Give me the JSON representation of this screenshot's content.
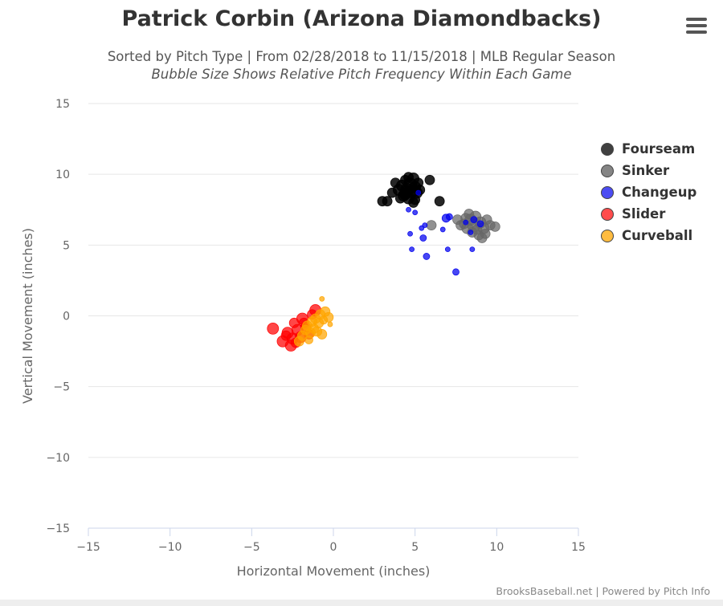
{
  "header": {
    "title": "Patrick Corbin (Arizona Diamondbacks)",
    "subtitle": "Sorted by Pitch Type | From 02/28/2018 to 11/15/2018 | MLB Regular Season",
    "subtitle_italic": "Bubble Size Shows Relative Pitch Frequency Within Each Game"
  },
  "menu": {
    "icon": "hamburger-menu-icon"
  },
  "credits": "BrooksBaseball.net | Powered by Pitch Info",
  "chart_data": {
    "type": "scatter",
    "title": "Patrick Corbin (Arizona Diamondbacks)",
    "xlabel": "Horizontal Movement (inches)",
    "ylabel": "Vertical Movement (inches)",
    "xlim": [
      -15,
      15
    ],
    "ylim": [
      -15,
      15
    ],
    "xticks": [
      -15,
      -10,
      -5,
      0,
      5,
      10,
      15
    ],
    "yticks": [
      -15,
      -10,
      -5,
      0,
      5,
      10,
      15
    ],
    "xtick_labels": [
      "−15",
      "−10",
      "−5",
      "0",
      "5",
      "10",
      "15"
    ],
    "ytick_labels": [
      "−15",
      "−10",
      "−5",
      "0",
      "5",
      "10",
      "15"
    ],
    "grid": "horizontal",
    "legend_position": "right",
    "series": [
      {
        "name": "Fourseam",
        "color": "#000000",
        "points": [
          {
            "x": 3.0,
            "y": 8.1,
            "s": 6
          },
          {
            "x": 3.3,
            "y": 8.1,
            "s": 6
          },
          {
            "x": 3.6,
            "y": 8.7,
            "s": 6
          },
          {
            "x": 3.8,
            "y": 9.4,
            "s": 6
          },
          {
            "x": 4.0,
            "y": 8.9,
            "s": 7
          },
          {
            "x": 4.2,
            "y": 9.2,
            "s": 7
          },
          {
            "x": 4.3,
            "y": 8.5,
            "s": 7
          },
          {
            "x": 4.4,
            "y": 9.6,
            "s": 6
          },
          {
            "x": 4.5,
            "y": 8.9,
            "s": 8
          },
          {
            "x": 4.6,
            "y": 8.3,
            "s": 7
          },
          {
            "x": 4.7,
            "y": 9.3,
            "s": 8
          },
          {
            "x": 4.8,
            "y": 8.8,
            "s": 8
          },
          {
            "x": 4.9,
            "y": 9.7,
            "s": 7
          },
          {
            "x": 5.0,
            "y": 9.1,
            "s": 7
          },
          {
            "x": 5.0,
            "y": 8.2,
            "s": 6
          },
          {
            "x": 5.1,
            "y": 8.7,
            "s": 7
          },
          {
            "x": 5.2,
            "y": 9.4,
            "s": 6
          },
          {
            "x": 4.4,
            "y": 8.6,
            "s": 7
          },
          {
            "x": 4.9,
            "y": 8.0,
            "s": 6
          },
          {
            "x": 5.9,
            "y": 9.6,
            "s": 6
          },
          {
            "x": 6.5,
            "y": 8.1,
            "s": 6
          },
          {
            "x": 4.1,
            "y": 8.3,
            "s": 6
          },
          {
            "x": 5.3,
            "y": 8.9,
            "s": 6
          },
          {
            "x": 4.6,
            "y": 9.8,
            "s": 6
          }
        ]
      },
      {
        "name": "Sinker",
        "color": "#666666",
        "points": [
          {
            "x": 6.0,
            "y": 6.4,
            "s": 6
          },
          {
            "x": 7.6,
            "y": 6.8,
            "s": 6
          },
          {
            "x": 7.8,
            "y": 6.4,
            "s": 6
          },
          {
            "x": 8.0,
            "y": 6.5,
            "s": 6
          },
          {
            "x": 8.2,
            "y": 6.2,
            "s": 7
          },
          {
            "x": 8.3,
            "y": 7.2,
            "s": 6
          },
          {
            "x": 8.4,
            "y": 6.8,
            "s": 7
          },
          {
            "x": 8.6,
            "y": 6.4,
            "s": 8
          },
          {
            "x": 8.7,
            "y": 7.0,
            "s": 7
          },
          {
            "x": 8.8,
            "y": 6.1,
            "s": 6
          },
          {
            "x": 8.9,
            "y": 5.7,
            "s": 6
          },
          {
            "x": 9.0,
            "y": 6.6,
            "s": 7
          },
          {
            "x": 9.2,
            "y": 6.2,
            "s": 7
          },
          {
            "x": 9.3,
            "y": 5.8,
            "s": 6
          },
          {
            "x": 9.4,
            "y": 6.8,
            "s": 6
          },
          {
            "x": 9.6,
            "y": 6.4,
            "s": 6
          },
          {
            "x": 9.9,
            "y": 6.3,
            "s": 6
          },
          {
            "x": 8.5,
            "y": 5.9,
            "s": 6
          },
          {
            "x": 9.1,
            "y": 5.5,
            "s": 6
          },
          {
            "x": 8.1,
            "y": 6.9,
            "s": 6
          }
        ]
      },
      {
        "name": "Changeup",
        "color": "#0000ee",
        "points": [
          {
            "x": 4.6,
            "y": 7.5,
            "s": 3
          },
          {
            "x": 5.0,
            "y": 7.3,
            "s": 3
          },
          {
            "x": 5.2,
            "y": 8.7,
            "s": 3
          },
          {
            "x": 5.4,
            "y": 6.2,
            "s": 3
          },
          {
            "x": 4.7,
            "y": 5.8,
            "s": 3
          },
          {
            "x": 4.8,
            "y": 4.7,
            "s": 3
          },
          {
            "x": 5.5,
            "y": 5.5,
            "s": 4
          },
          {
            "x": 5.7,
            "y": 4.2,
            "s": 4
          },
          {
            "x": 5.6,
            "y": 6.4,
            "s": 3
          },
          {
            "x": 6.7,
            "y": 6.1,
            "s": 3
          },
          {
            "x": 6.9,
            "y": 6.9,
            "s": 5
          },
          {
            "x": 7.1,
            "y": 7.0,
            "s": 4
          },
          {
            "x": 7.0,
            "y": 4.7,
            "s": 3
          },
          {
            "x": 7.5,
            "y": 3.1,
            "s": 4
          },
          {
            "x": 8.1,
            "y": 6.6,
            "s": 3
          },
          {
            "x": 8.4,
            "y": 5.9,
            "s": 3
          },
          {
            "x": 8.6,
            "y": 6.8,
            "s": 4
          },
          {
            "x": 8.5,
            "y": 4.7,
            "s": 3
          },
          {
            "x": 9.0,
            "y": 6.5,
            "s": 4
          }
        ]
      },
      {
        "name": "Slider",
        "color": "#ff0000",
        "points": [
          {
            "x": -3.7,
            "y": -0.9,
            "s": 7
          },
          {
            "x": -3.1,
            "y": -1.8,
            "s": 7
          },
          {
            "x": -2.8,
            "y": -1.2,
            "s": 7
          },
          {
            "x": -2.6,
            "y": -2.1,
            "s": 7
          },
          {
            "x": -2.5,
            "y": -1.6,
            "s": 7
          },
          {
            "x": -2.4,
            "y": -0.5,
            "s": 6
          },
          {
            "x": -2.2,
            "y": -1.0,
            "s": 7
          },
          {
            "x": -2.0,
            "y": -1.5,
            "s": 7
          },
          {
            "x": -1.9,
            "y": -0.2,
            "s": 7
          },
          {
            "x": -1.7,
            "y": -0.8,
            "s": 6
          },
          {
            "x": -1.5,
            "y": -1.3,
            "s": 6
          },
          {
            "x": -1.3,
            "y": 0.1,
            "s": 6
          },
          {
            "x": -1.1,
            "y": 0.4,
            "s": 7
          },
          {
            "x": -2.9,
            "y": -1.4,
            "s": 6
          },
          {
            "x": -2.3,
            "y": -1.9,
            "s": 6
          },
          {
            "x": -1.8,
            "y": -0.5,
            "s": 6
          }
        ]
      },
      {
        "name": "Curveball",
        "color": "#ffa500",
        "points": [
          {
            "x": -2.1,
            "y": -1.8,
            "s": 6
          },
          {
            "x": -1.9,
            "y": -1.4,
            "s": 6
          },
          {
            "x": -1.7,
            "y": -1.0,
            "s": 6
          },
          {
            "x": -1.6,
            "y": -0.7,
            "s": 6
          },
          {
            "x": -1.4,
            "y": -1.2,
            "s": 6
          },
          {
            "x": -1.3,
            "y": -0.4,
            "s": 6
          },
          {
            "x": -1.2,
            "y": -0.9,
            "s": 6
          },
          {
            "x": -1.1,
            "y": -0.2,
            "s": 6
          },
          {
            "x": -1.0,
            "y": -1.1,
            "s": 6
          },
          {
            "x": -0.9,
            "y": -0.5,
            "s": 6
          },
          {
            "x": -0.8,
            "y": 0.1,
            "s": 6
          },
          {
            "x": -0.7,
            "y": -1.3,
            "s": 6
          },
          {
            "x": -0.6,
            "y": -0.3,
            "s": 5
          },
          {
            "x": -0.5,
            "y": 0.3,
            "s": 6
          },
          {
            "x": -0.3,
            "y": -0.1,
            "s": 6
          },
          {
            "x": -0.2,
            "y": -0.6,
            "s": 3
          },
          {
            "x": -0.7,
            "y": 1.2,
            "s": 3
          },
          {
            "x": -1.5,
            "y": -1.7,
            "s": 5
          }
        ]
      }
    ]
  }
}
